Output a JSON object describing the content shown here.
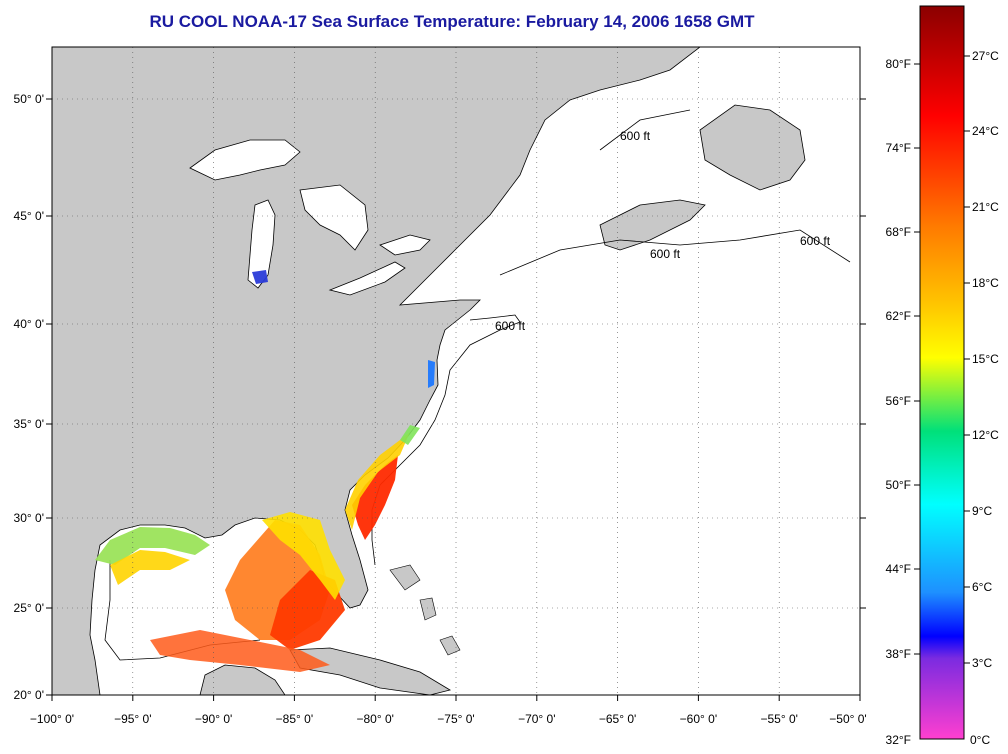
{
  "title": "RU COOL  NOAA-17  Sea Surface Temperature:  February 14, 2006 1658 GMT",
  "map": {
    "lon_range": [
      -100,
      -50
    ],
    "lat_range": [
      20,
      52.3
    ],
    "lon_ticks": [
      "−100° 0'",
      "−95° 0'",
      "−90° 0'",
      "−85° 0'",
      "−80° 0'",
      "−75° 0'",
      "−70° 0'",
      "−65° 0'",
      "−60° 0'",
      "−55° 0'",
      "−50° 0'"
    ],
    "lat_ticks": [
      "50° 0'",
      "45° 0'",
      "40° 0'",
      "35° 0'",
      "30° 0'",
      "25° 0'",
      "20° 0'"
    ],
    "contour_label": "600 ft",
    "land_color": "#c8c8c8",
    "ocean_color": "#ffffff"
  },
  "colorbar": {
    "fahrenheit": [
      "80°F",
      "74°F",
      "68°F",
      "62°F",
      "56°F",
      "50°F",
      "44°F",
      "38°F",
      "32°F"
    ],
    "celsius": [
      "27°C",
      "24°C",
      "21°C",
      "18°C",
      "15°C",
      "12°C",
      "9°C",
      "6°C",
      "3°C",
      "0°C"
    ],
    "gradient": [
      "#8b0000",
      "#ff0000",
      "#ff6a00",
      "#ffa500",
      "#ffff00",
      "#00e07a",
      "#00ffff",
      "#1e90ff",
      "#0000ff",
      "#6a0dad",
      "#ff00ff"
    ]
  }
}
